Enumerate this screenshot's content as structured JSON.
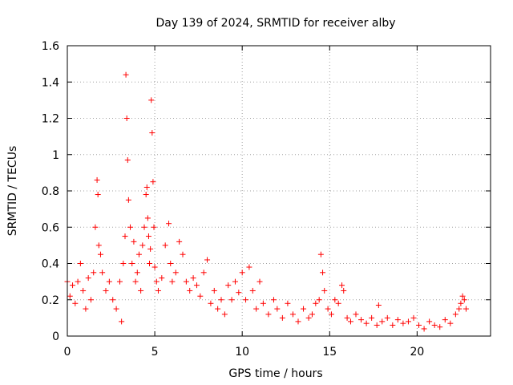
{
  "chart_data": {
    "type": "scatter",
    "title": "Day 139 of 2024, SRMTID for receiver alby",
    "xlabel": "GPS time / hours",
    "ylabel": "SRMTID / TECUs",
    "xlim": [
      0,
      24.2
    ],
    "ylim": [
      0,
      1.6
    ],
    "xticks": [
      0,
      5,
      10,
      15,
      20
    ],
    "xtick_labels": [
      "0",
      "5",
      "10",
      "15",
      "20"
    ],
    "yticks": [
      0,
      0.2,
      0.4,
      0.6,
      0.8,
      1.0,
      1.2,
      1.4,
      1.6
    ],
    "ytick_labels": [
      "0",
      "0.2",
      "0.4",
      "0.6",
      "0.8",
      "1",
      "1.2",
      "1.4",
      "1.6"
    ],
    "grid": true,
    "marker": "+",
    "marker_color": "#ff0000",
    "series": [
      {
        "name": "SRMTID",
        "x": [
          0.0,
          0.15,
          0.3,
          0.45,
          0.6,
          0.75,
          0.9,
          1.05,
          1.2,
          1.35,
          1.5,
          1.6,
          1.7,
          1.75,
          1.8,
          1.9,
          2.0,
          2.2,
          2.4,
          2.6,
          2.8,
          3.0,
          3.1,
          3.2,
          3.3,
          3.35,
          3.4,
          3.45,
          3.5,
          3.6,
          3.7,
          3.8,
          3.9,
          4.0,
          4.1,
          4.2,
          4.3,
          4.4,
          4.5,
          4.55,
          4.6,
          4.65,
          4.7,
          4.75,
          4.8,
          4.85,
          4.9,
          4.95,
          5.0,
          5.1,
          5.2,
          5.4,
          5.6,
          5.8,
          5.9,
          6.0,
          6.2,
          6.4,
          6.6,
          6.8,
          7.0,
          7.2,
          7.4,
          7.6,
          7.8,
          8.0,
          8.2,
          8.4,
          8.6,
          8.8,
          9.0,
          9.2,
          9.4,
          9.6,
          9.8,
          10.0,
          10.2,
          10.4,
          10.6,
          10.8,
          11.0,
          11.2,
          11.5,
          11.8,
          12.0,
          12.3,
          12.6,
          12.9,
          13.2,
          13.5,
          13.8,
          14.0,
          14.2,
          14.4,
          14.5,
          14.6,
          14.7,
          14.9,
          15.1,
          15.3,
          15.5,
          15.7,
          15.8,
          16.0,
          16.2,
          16.5,
          16.8,
          17.1,
          17.4,
          17.7,
          17.8,
          18.0,
          18.3,
          18.6,
          18.9,
          19.2,
          19.5,
          19.8,
          20.1,
          20.4,
          20.7,
          21.0,
          21.3,
          21.6,
          21.9,
          22.2,
          22.4,
          22.5,
          22.6,
          22.7,
          22.8
        ],
        "y": [
          0.3,
          0.22,
          0.28,
          0.18,
          0.3,
          0.4,
          0.25,
          0.15,
          0.32,
          0.2,
          0.35,
          0.6,
          0.86,
          0.78,
          0.5,
          0.45,
          0.35,
          0.25,
          0.3,
          0.2,
          0.15,
          0.3,
          0.08,
          0.4,
          0.55,
          1.44,
          1.2,
          0.97,
          0.75,
          0.6,
          0.4,
          0.52,
          0.3,
          0.35,
          0.45,
          0.25,
          0.5,
          0.6,
          0.78,
          0.82,
          0.65,
          0.55,
          0.4,
          0.48,
          1.3,
          1.12,
          0.85,
          0.6,
          0.38,
          0.3,
          0.25,
          0.32,
          0.5,
          0.62,
          0.4,
          0.3,
          0.35,
          0.52,
          0.45,
          0.3,
          0.25,
          0.32,
          0.28,
          0.22,
          0.35,
          0.42,
          0.18,
          0.25,
          0.15,
          0.2,
          0.12,
          0.28,
          0.2,
          0.3,
          0.24,
          0.35,
          0.2,
          0.38,
          0.25,
          0.15,
          0.3,
          0.18,
          0.12,
          0.2,
          0.15,
          0.1,
          0.18,
          0.12,
          0.08,
          0.15,
          0.1,
          0.12,
          0.18,
          0.2,
          0.45,
          0.35,
          0.25,
          0.15,
          0.12,
          0.2,
          0.18,
          0.28,
          0.25,
          0.1,
          0.08,
          0.12,
          0.09,
          0.07,
          0.1,
          0.06,
          0.17,
          0.08,
          0.1,
          0.06,
          0.09,
          0.07,
          0.08,
          0.1,
          0.06,
          0.04,
          0.08,
          0.06,
          0.05,
          0.09,
          0.07,
          0.12,
          0.15,
          0.18,
          0.22,
          0.2,
          0.15
        ]
      }
    ]
  }
}
